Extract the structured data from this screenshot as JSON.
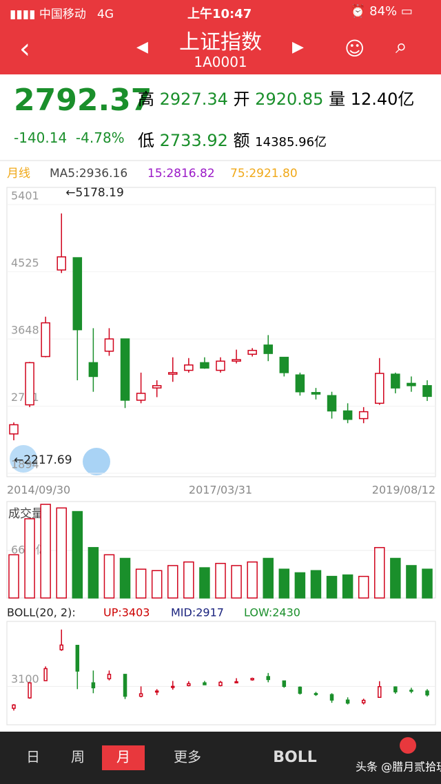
{
  "status_bar": {
    "carrier": "中国移动",
    "network": "4G",
    "time": "上午10:47",
    "battery": "84%"
  },
  "header": {
    "title": "上证指数",
    "code": "1A0001"
  },
  "quote": {
    "price": "2792.37",
    "change": "-140.14",
    "change_pct": "-4.78%",
    "high_label": "高",
    "high": "2927.34",
    "open_label": "开",
    "open": "2920.85",
    "volume_label": "量",
    "volume": "12.40亿",
    "low_label": "低",
    "low": "2733.92",
    "amount_label": "额",
    "amount": "14385.96亿"
  },
  "chart_data": {
    "type": "candlestick",
    "period": "月线",
    "legend": [
      "MA5:2936.16",
      "15:2816.82",
      "75:2921.80"
    ],
    "legend_colors": [
      "#444444",
      "#9b19c7",
      "#f0a818"
    ],
    "ylim": [
      1894,
      5401
    ],
    "yticks": [
      5401,
      4525,
      3648,
      2771,
      1894
    ],
    "max_label": "←5178.19",
    "min_label": "←2217.69",
    "x_labels": [
      "2014/09/30",
      "2017/03/31",
      "2019/08/12"
    ],
    "up_color": "#d0021b",
    "down_color": "#1a8f2b",
    "candles": [
      [
        2300,
        2420,
        2450,
        2217
      ],
      [
        2680,
        3230,
        3240,
        2650
      ],
      [
        3310,
        3750,
        3830,
        3300
      ],
      [
        4440,
        4611,
        5178,
        4400
      ],
      [
        4600,
        3660,
        4600,
        3000
      ],
      [
        3230,
        3050,
        3680,
        2850
      ],
      [
        3380,
        3540,
        3680,
        3320
      ],
      [
        3540,
        2740,
        3540,
        2638
      ],
      [
        2740,
        2830,
        3100,
        2700
      ],
      [
        2900,
        2930,
        3000,
        2780
      ],
      [
        3080,
        3100,
        3300,
        2980
      ],
      [
        3130,
        3200,
        3290,
        3100
      ],
      [
        3230,
        3160,
        3300,
        3150
      ],
      [
        3130,
        3250,
        3300,
        3100
      ],
      [
        3250,
        3270,
        3400,
        3220
      ],
      [
        3340,
        3390,
        3420,
        3310
      ],
      [
        3460,
        3350,
        3590,
        3250
      ],
      [
        3300,
        3100,
        3300,
        3050
      ],
      [
        3070,
        2850,
        3100,
        2800
      ],
      [
        2840,
        2820,
        2900,
        2750
      ],
      [
        2800,
        2600,
        2850,
        2500
      ],
      [
        2600,
        2490,
        2700,
        2440
      ],
      [
        2500,
        2590,
        2650,
        2440
      ],
      [
        2700,
        3090,
        3290,
        2680
      ],
      [
        3080,
        2900,
        3100,
        2830
      ],
      [
        2960,
        2930,
        3050,
        2850
      ],
      [
        2930,
        2790,
        3000,
        2730
      ]
    ],
    "volume_title": "成交量",
    "volume_ylim": [
      0,
      132
    ],
    "volume_ticks": [
      {
        "value": 66,
        "label": "66.0亿"
      }
    ],
    "volumes": [
      60,
      110,
      130,
      125,
      120,
      70,
      60,
      55,
      40,
      38,
      45,
      50,
      42,
      48,
      45,
      50,
      55,
      40,
      35,
      38,
      30,
      32,
      30,
      70,
      55,
      45,
      40
    ],
    "boll_title": "BOLL(20, 2):",
    "boll_up": "UP:3403",
    "boll_mid": "MID:2917",
    "boll_low": "LOW:2430",
    "boll_ylim": [
      2000,
      5400
    ],
    "boll_ticks": [
      3100
    ]
  },
  "tabs": [
    "日",
    "周",
    "月",
    "更多",
    "BOLL"
  ],
  "watermark": "头条 @腊月贰拾玖"
}
